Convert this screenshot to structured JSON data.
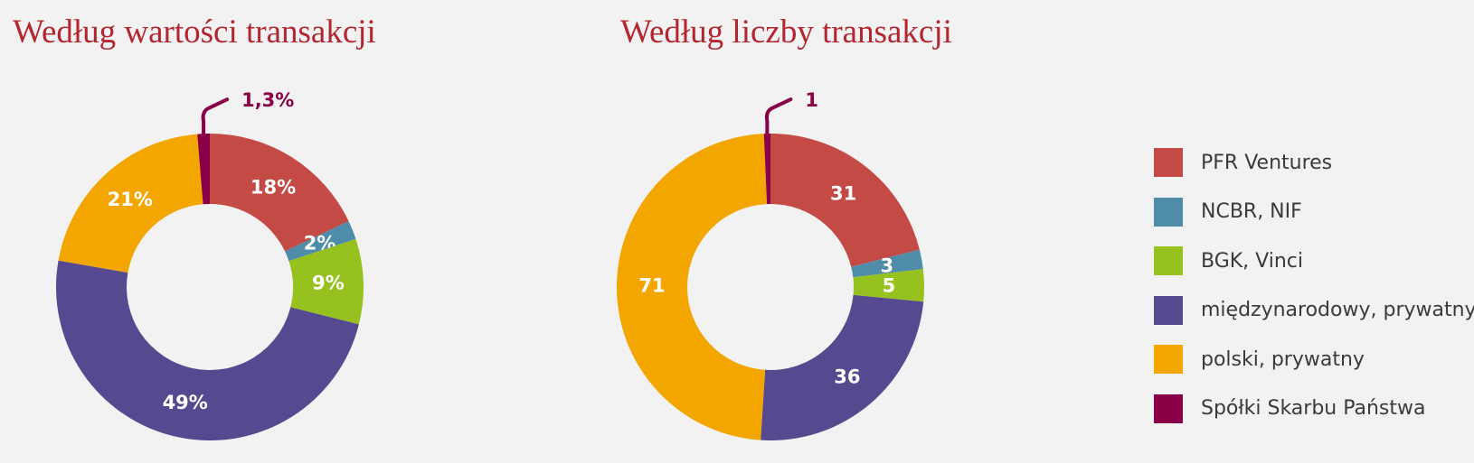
{
  "chart_data": [
    {
      "type": "donut",
      "title": "Według wartości transakcji",
      "slices": [
        {
          "category": "PFR Ventures",
          "value": 18,
          "label": "18%"
        },
        {
          "category": "NCBR, NIF",
          "value": 2,
          "label": "2%"
        },
        {
          "category": "BGK, Vinci",
          "value": 9,
          "label": "9%"
        },
        {
          "category": "międzynarodowy, prywatny",
          "value": 49,
          "label": "49%"
        },
        {
          "category": "polski, prywatny",
          "value": 21,
          "label": "21%"
        },
        {
          "category": "Spółki Skarbu Państwa",
          "value": 1.3,
          "label": "1,3%"
        }
      ]
    },
    {
      "type": "donut",
      "title": "Według liczby transakcji",
      "slices": [
        {
          "category": "PFR Ventures",
          "value": 31,
          "label": "31"
        },
        {
          "category": "NCBR, NIF",
          "value": 3,
          "label": "3"
        },
        {
          "category": "BGK, Vinci",
          "value": 5,
          "label": "5"
        },
        {
          "category": "międzynarodowy, prywatny",
          "value": 36,
          "label": "36"
        },
        {
          "category": "polski, prywatny",
          "value": 71,
          "label": "71"
        },
        {
          "category": "Spółki Skarbu Państwa",
          "value": 1,
          "label": "1"
        }
      ]
    }
  ],
  "legend": {
    "placement": "right",
    "items": [
      {
        "label": "PFR Ventures",
        "color": "#c44b45"
      },
      {
        "label": "NCBR, NIF",
        "color": "#4e8ca9"
      },
      {
        "label": "BGK, Vinci",
        "color": "#96c11f"
      },
      {
        "label": "międzynarodowy, prywatny",
        "color": "#564990"
      },
      {
        "label": "polski, prywatny",
        "color": "#f3a600"
      },
      {
        "label": "Spółki Skarbu Państwa",
        "color": "#8a0047"
      }
    ]
  }
}
